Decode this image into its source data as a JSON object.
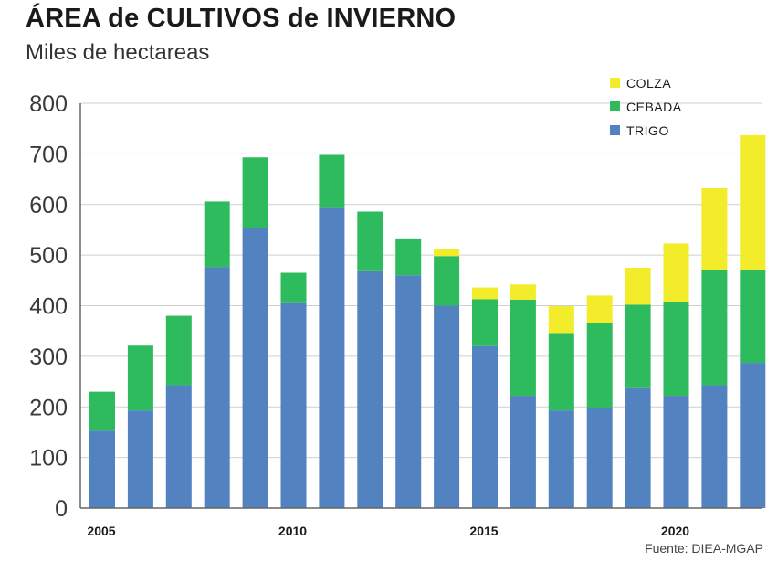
{
  "colors": {
    "trigo": "#5282c0",
    "cebada": "#2dbb5e",
    "colza": "#f2ec2a",
    "grid": "#cfcfcf",
    "axis": "#666666"
  },
  "chart_data": {
    "type": "bar",
    "stacked": true,
    "title": "ÁREA de CULTIVOS de INVIERNO",
    "subtitle": "Miles de hectareas",
    "source": "Fuente: DIEA-MGAP",
    "ylim": [
      0,
      800
    ],
    "yticks": [
      "0",
      "100",
      "200",
      "300",
      "400",
      "500",
      "600",
      "700",
      "800"
    ],
    "xtick_labels": [
      {
        "year": 2005,
        "label": "2005"
      },
      {
        "year": 2010,
        "label": "2010"
      },
      {
        "year": 2015,
        "label": "2015"
      },
      {
        "year": 2020,
        "label": "2020"
      }
    ],
    "categories": [
      2005,
      2006,
      2007,
      2008,
      2009,
      2010,
      2011,
      2012,
      2013,
      2014,
      2015,
      2016,
      2017,
      2018,
      2019,
      2020,
      2021,
      2022
    ],
    "series": [
      {
        "name": "TRIGO",
        "key": "trigo",
        "values": [
          153,
          193,
          243,
          476,
          553,
          405,
          593,
          468,
          460,
          400,
          320,
          222,
          193,
          197,
          237,
          222,
          243,
          287
        ]
      },
      {
        "name": "CEBADA",
        "key": "cebada",
        "values": [
          77,
          128,
          137,
          130,
          140,
          60,
          105,
          118,
          73,
          98,
          93,
          190,
          153,
          168,
          165,
          186,
          227,
          183
        ]
      },
      {
        "name": "COLZA",
        "key": "colza",
        "values": [
          0,
          0,
          0,
          0,
          0,
          0,
          0,
          0,
          0,
          13,
          23,
          30,
          53,
          55,
          73,
          115,
          162,
          267
        ]
      }
    ],
    "legend": [
      "COLZA",
      "CEBADA",
      "TRIGO"
    ],
    "legend_position": "top-right",
    "grid": true
  }
}
